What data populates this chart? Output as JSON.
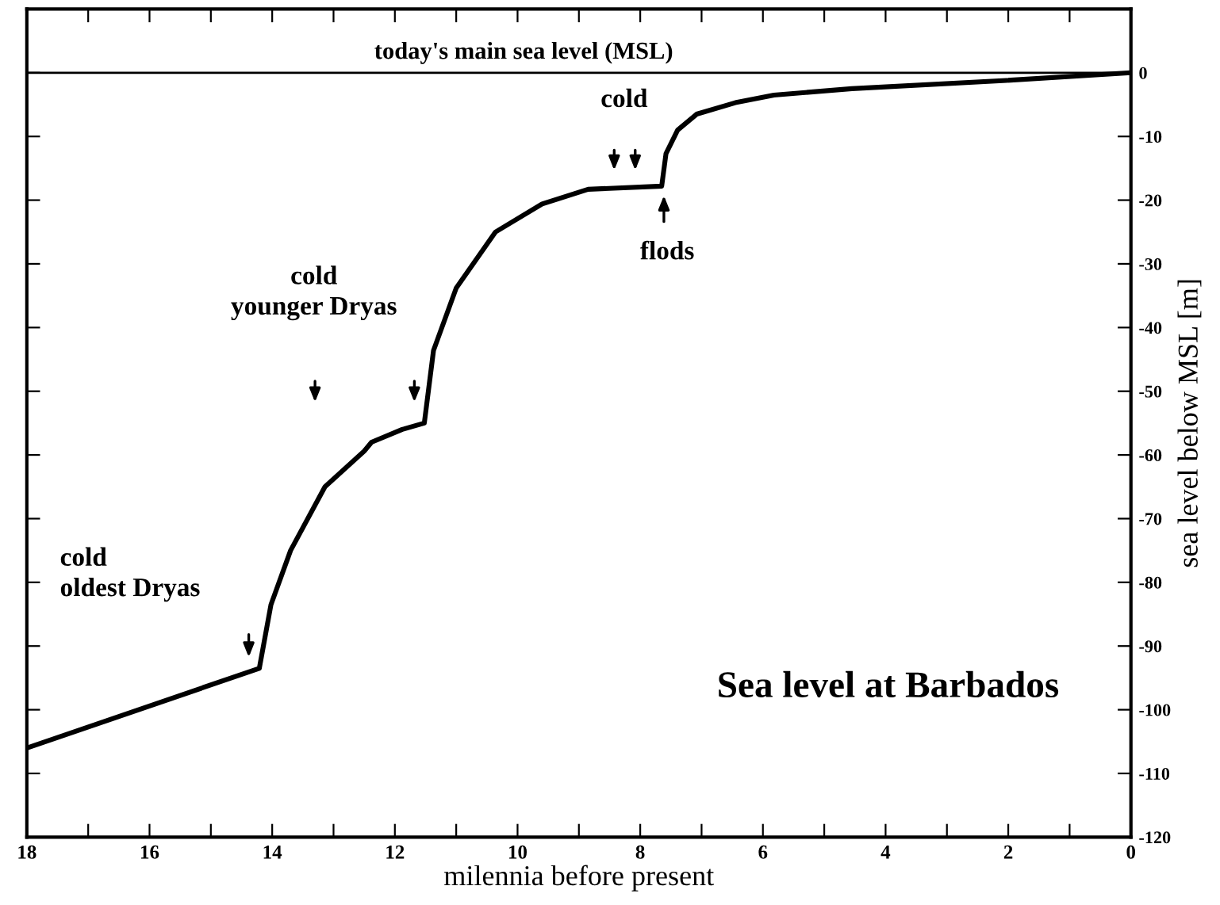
{
  "chart_data": {
    "type": "line",
    "xlabel": "milennia before present",
    "ylabel": "sea level below MSL [m]",
    "series": [
      {
        "color": "#000000",
        "x": [
          18,
          14.21,
          14.02,
          13.7,
          13.14,
          12.5,
          12.38,
          11.88,
          11.52,
          11.37,
          11.0,
          10.36,
          9.6,
          8.85,
          7.65,
          7.58,
          7.39,
          7.08,
          6.45,
          5.82,
          4.55,
          2.03,
          0
        ],
        "values": [
          -106,
          -93.5,
          -83.5,
          -75,
          -65,
          -59.4,
          -58,
          -56,
          -55,
          -43.6,
          -33.8,
          -25,
          -20.6,
          -18.3,
          -17.8,
          -12.7,
          -9,
          -6.5,
          -4.7,
          -3.5,
          -2.5,
          -1.2,
          0
        ]
      }
    ],
    "ref_lines": [
      {
        "axis": "y",
        "value": 0,
        "label": "today's main sea level (MSL)",
        "color": "#000000"
      }
    ],
    "annotations": [
      "cold\noldest Dryas",
      "cold\nyounger Dryas",
      "cold",
      "flods",
      "Sea level at Barbados"
    ],
    "xlim": [
      18,
      0
    ],
    "xticks": [
      18,
      {
        "value": 17,
        "label": null
      },
      16,
      {
        "value": 15,
        "label": null
      },
      14,
      {
        "value": 13,
        "label": null
      },
      12,
      {
        "value": 11,
        "label": null
      },
      10,
      {
        "value": 9,
        "label": null
      },
      8,
      {
        "value": 7,
        "label": null
      },
      6,
      {
        "value": 5,
        "label": null
      },
      4,
      {
        "value": 3,
        "label": null
      },
      2,
      {
        "value": 1,
        "label": null
      },
      0
    ],
    "ylim": [
      -120,
      10
    ],
    "yticks": [
      0,
      -10,
      -20,
      -30,
      -40,
      -50,
      -60,
      -70,
      -80,
      -90,
      -100,
      -110,
      -120
    ],
    "grid": false,
    "legend": false,
    "marker": "none",
    "line_style": "solid"
  }
}
